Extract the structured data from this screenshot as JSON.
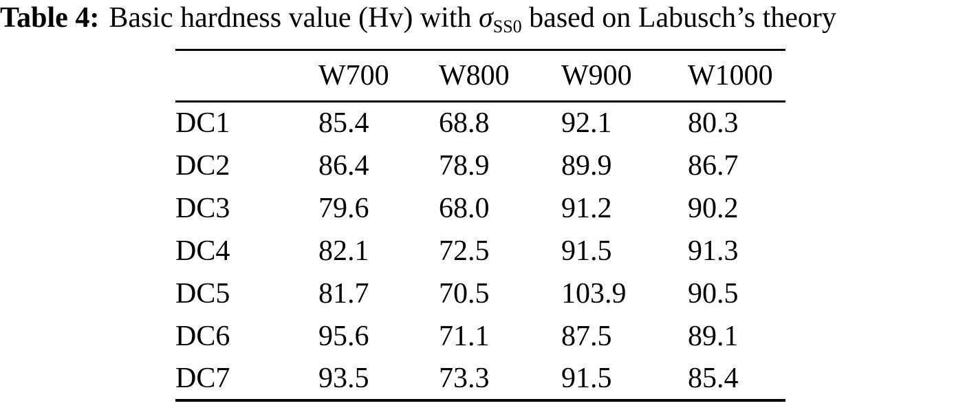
{
  "caption": {
    "label": "Table 4:",
    "before_sigma": "Basic hardness value (Hv) with ",
    "sigma": "σ",
    "sigma_subscript": "SS0",
    "after_sigma": " based on Labusch’s theory"
  },
  "table": {
    "columns": [
      "",
      "W700",
      "W800",
      "W900",
      "W1000"
    ],
    "rows": [
      [
        "DC1",
        "85.4",
        "68.8",
        "92.1",
        "80.3"
      ],
      [
        "DC2",
        "86.4",
        "78.9",
        "89.9",
        "86.7"
      ],
      [
        "DC3",
        "79.6",
        "68.0",
        "91.2",
        "90.2"
      ],
      [
        "DC4",
        "82.1",
        "72.5",
        "91.5",
        "91.3"
      ],
      [
        "DC5",
        "81.7",
        "70.5",
        "103.9",
        "90.5"
      ],
      [
        "DC6",
        "95.6",
        "71.1",
        "87.5",
        "89.1"
      ],
      [
        "DC7",
        "93.5",
        "73.3",
        "91.5",
        "85.4"
      ]
    ]
  }
}
